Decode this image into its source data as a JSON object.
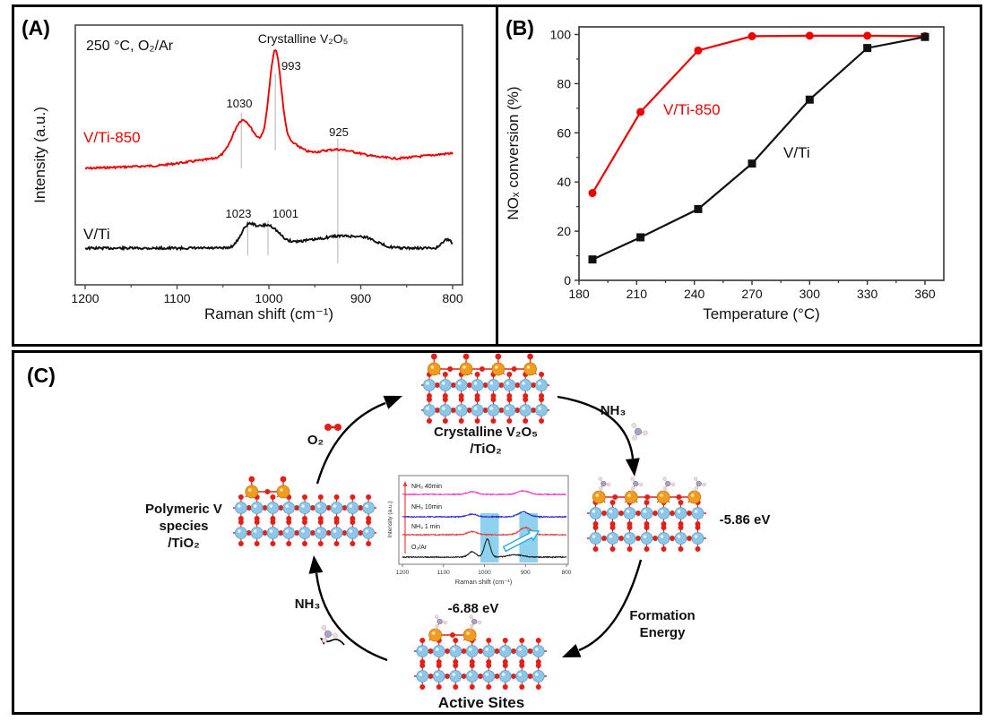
{
  "figure": {
    "background": "#ffffff",
    "border_color": "#000000",
    "panel_a": {
      "label": "(A)",
      "condition": "250 °C, O₂/Ar",
      "top_annotation": "Crystalline V₂O₅",
      "xlabel": "Raman shift (cm⁻¹)",
      "ylabel": "Intensity (a.u.)"
    },
    "panel_b": {
      "label": "(B)",
      "xlabel": "Temperature (°C)",
      "ylabel": "NOₓ conversion (%)"
    },
    "panel_c": {
      "label": "(C)",
      "crystalline_line1": "Crystalline V₂O₅",
      "crystalline_line2": "/TiO₂",
      "polymeric_line1": "Polymeric V",
      "polymeric_line2": "species",
      "polymeric_line3": "/TiO₂",
      "active_sites_label": "Active Sites",
      "energy_nh3_adsorption": "-5.86 eV",
      "energy_active_formation": "-6.88 eV",
      "o2_label": "O₂",
      "nh3_top_label": "NH₃",
      "nh3_bottom_label": "NH₃",
      "formation_line1": "Formation",
      "formation_line2": "Energy",
      "atom_colors": {
        "V": "#f09c1e",
        "Ti": "#8cc6e8",
        "O": "#e22018",
        "N": "#a9a2c5",
        "H": "#eedbd8"
      },
      "highlight_color": "#8ed2f0",
      "arrow_color": "#000000"
    }
  },
  "chart_data": [
    {
      "id": "panel-a-raman",
      "type": "line",
      "title": "",
      "xlabel": "Raman shift (cm⁻¹)",
      "ylabel": "Intensity (a.u.)",
      "x_ticks": [
        1200,
        1100,
        1000,
        900,
        800
      ],
      "x_range": [
        1200,
        800
      ],
      "x_reversed": true,
      "grid": false,
      "condition_annotation": "250 °C, O₂/Ar",
      "top_annotation": "Crystalline V₂O₅",
      "series": [
        {
          "name": "V/Ti-850",
          "color": "#ee0000",
          "baseline_profile": [
            [
              1200,
              0.448
            ],
            [
              1120,
              0.459
            ],
            [
              1050,
              0.49
            ],
            [
              1000,
              0.503
            ],
            [
              960,
              0.497
            ],
            [
              925,
              0.497
            ],
            [
              860,
              0.486
            ],
            [
              800,
              0.507
            ]
          ],
          "peaks": [
            {
              "x": 1030,
              "h": 0.121,
              "w": 10,
              "label": "1030"
            },
            {
              "x": 1014,
              "h": 0.041,
              "w": 12
            },
            {
              "x": 993,
              "h": 0.383,
              "w": 6.5,
              "label": "993"
            },
            {
              "x": 975,
              "h": 0.041,
              "w": 10
            },
            {
              "x": 925,
              "h": 0.024,
              "w": 22,
              "label": "925"
            }
          ]
        },
        {
          "name": "V/Ti",
          "color": "#111111",
          "baseline_profile": [
            [
              1200,
              0.141
            ],
            [
              800,
              0.141
            ]
          ],
          "peaks": [
            {
              "x": 1023,
              "h": 0.076,
              "w": 8,
              "label": "1023"
            },
            {
              "x": 1001,
              "h": 0.086,
              "w": 12,
              "label": "1001"
            },
            {
              "x": 965,
              "h": 0.021,
              "w": 15
            },
            {
              "x": 925,
              "h": 0.045,
              "w": 20
            },
            {
              "x": 893,
              "h": 0.028,
              "w": 13
            },
            {
              "x": 806,
              "h": 0.034,
              "w": 5
            }
          ]
        }
      ]
    },
    {
      "id": "panel-b-nox-conversion",
      "type": "line",
      "title": "",
      "xlabel": "Temperature (°C)",
      "ylabel": "NOₓ conversion (%)",
      "x_ticks": [
        180,
        210,
        240,
        270,
        300,
        330,
        360
      ],
      "y_ticks": [
        0,
        20,
        40,
        60,
        80,
        100
      ],
      "xlim": [
        180,
        370
      ],
      "ylim": [
        0,
        103
      ],
      "grid": false,
      "series": [
        {
          "name": "V/Ti-850",
          "color": "#ee0000",
          "marker": "circle",
          "x": [
            187,
            212,
            242,
            270,
            300,
            330,
            360
          ],
          "y": [
            35.5,
            68.5,
            93.5,
            99.3,
            99.5,
            99.5,
            99.3
          ]
        },
        {
          "name": "V/Ti",
          "color": "#111111",
          "marker": "square",
          "x": [
            187,
            212,
            242,
            270,
            300,
            330,
            360
          ],
          "y": [
            8.5,
            17.5,
            29,
            47.5,
            73.5,
            94.5,
            99
          ]
        }
      ]
    },
    {
      "id": "panel-c-inset-raman",
      "type": "line",
      "title": "",
      "xlabel": "Raman shift (cm⁻¹)",
      "ylabel": "Intensity (a.u.)",
      "x_ticks": [
        1200,
        1100,
        1000,
        900,
        800
      ],
      "x_range": [
        1200,
        800
      ],
      "x_reversed": true,
      "highlight_bands": [
        [
          1010,
          965
        ],
        [
          915,
          870
        ]
      ],
      "series": [
        {
          "name": "NH₃ 40min",
          "color": "#f03cc8",
          "baseline_profile": [
            [
              1200,
              0.788
            ],
            [
              800,
              0.788
            ]
          ],
          "peaks": [
            {
              "x": 1030,
              "h": 0.03,
              "w": 12
            },
            {
              "x": 905,
              "h": 0.04,
              "w": 14
            }
          ]
        },
        {
          "name": "NH₃ 10min",
          "color": "#3030cf",
          "baseline_profile": [
            [
              1200,
              0.535
            ],
            [
              800,
              0.535
            ]
          ],
          "peaks": [
            {
              "x": 1030,
              "h": 0.03,
              "w": 12
            },
            {
              "x": 905,
              "h": 0.055,
              "w": 13
            }
          ]
        },
        {
          "name": "NH₃ 1 min",
          "color": "#e84040",
          "baseline_profile": [
            [
              1200,
              0.333
            ],
            [
              800,
              0.333
            ]
          ],
          "peaks": [
            {
              "x": 1030,
              "h": 0.035,
              "w": 12
            },
            {
              "x": 900,
              "h": 0.081,
              "w": 14
            }
          ]
        },
        {
          "name": "O₂/Ar",
          "color": "#222222",
          "baseline_profile": [
            [
              1200,
              0.081
            ],
            [
              800,
              0.081
            ]
          ],
          "peaks": [
            {
              "x": 1030,
              "h": 0.06,
              "w": 9
            },
            {
              "x": 993,
              "h": 0.202,
              "w": 7
            },
            {
              "x": 925,
              "h": 0.025,
              "w": 18
            }
          ]
        }
      ]
    }
  ]
}
